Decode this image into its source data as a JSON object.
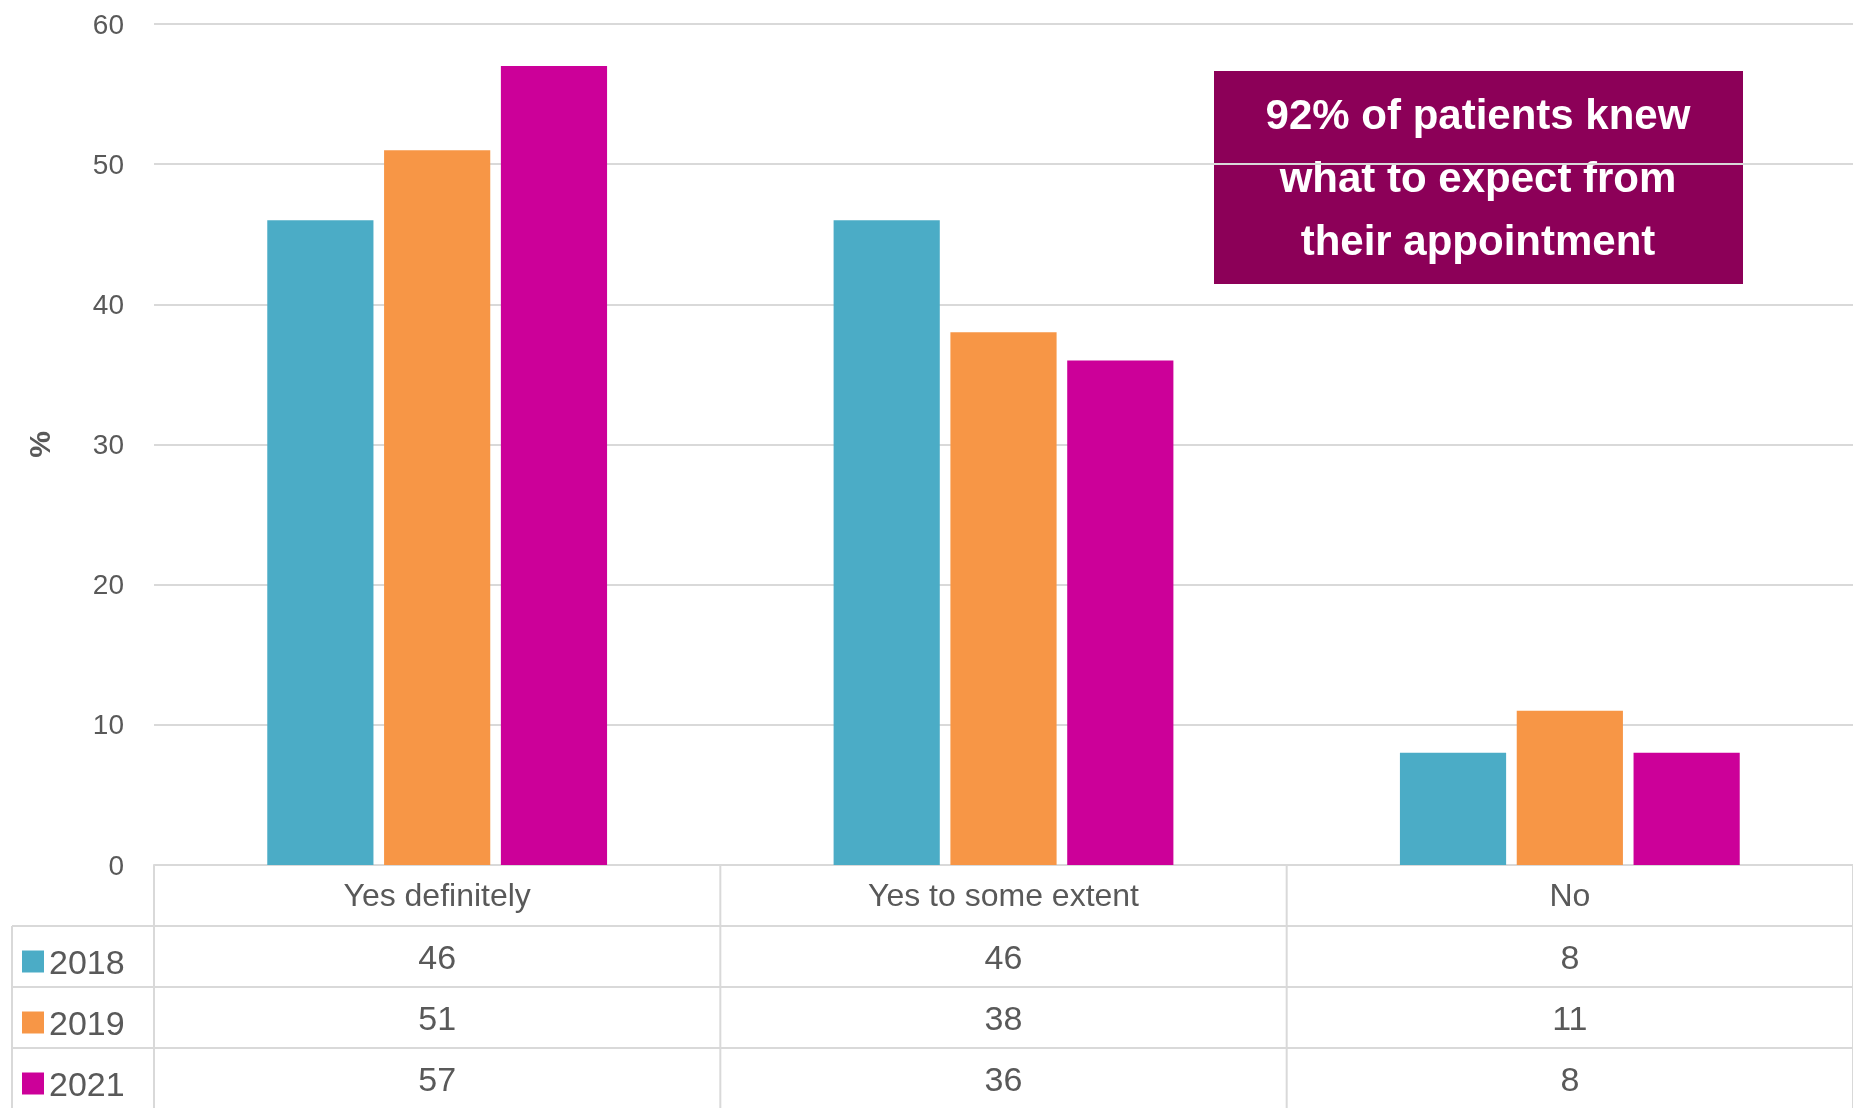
{
  "chart_data": {
    "type": "bar",
    "ylabel": "%",
    "categories": [
      "Yes definitely",
      "Yes to some extent",
      "No"
    ],
    "series": [
      {
        "name": "2018",
        "color": "#4bacc6",
        "values": [
          46,
          46,
          8
        ]
      },
      {
        "name": "2019",
        "color": "#f79646",
        "values": [
          51,
          38,
          11
        ]
      },
      {
        "name": "2021",
        "color": "#cc0099",
        "values": [
          57,
          36,
          8
        ]
      }
    ],
    "ylim": [
      0,
      60
    ],
    "yticks": [
      0,
      10,
      20,
      30,
      40,
      50,
      60
    ],
    "grid": "y",
    "legend": "bottom",
    "data_labels": true,
    "annotations": [
      "92% of patients knew what to expect from their appointment"
    ]
  }
}
